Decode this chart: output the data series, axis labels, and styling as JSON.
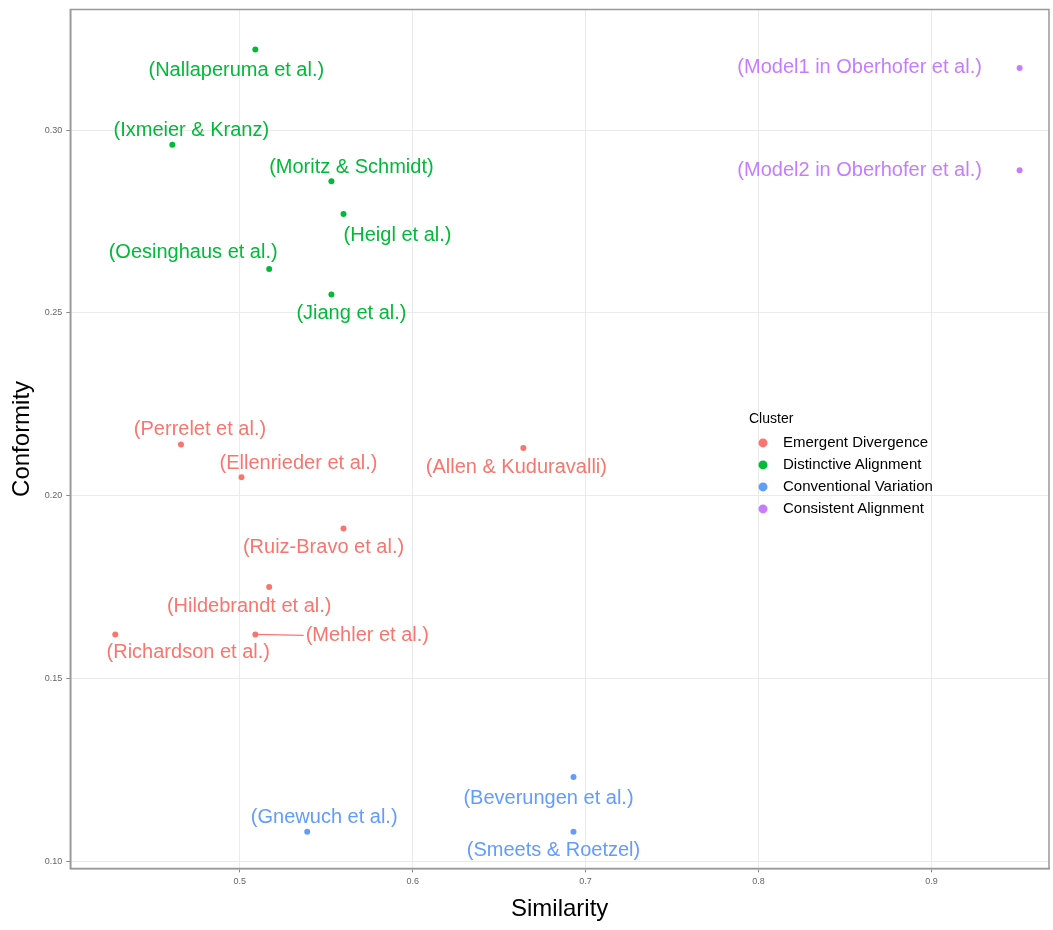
{
  "chart_data": {
    "type": "scatter",
    "xlabel": "Similarity",
    "ylabel": "Conformity",
    "legend_title": "Cluster",
    "legend": "right",
    "grid": true,
    "marker": "circle",
    "xlim": [
      0.402,
      0.968
    ],
    "ylim": [
      0.098,
      0.333
    ],
    "xticks": [
      {
        "value": 0.5,
        "label": "0.5"
      },
      {
        "value": 0.6,
        "label": "0.6"
      },
      {
        "value": 0.7,
        "label": "0.7"
      },
      {
        "value": 0.8,
        "label": "0.8"
      },
      {
        "value": 0.9,
        "label": "0.9"
      }
    ],
    "yticks": [
      {
        "value": 0.1,
        "label": "0.10"
      },
      {
        "value": 0.15,
        "label": "0.15"
      },
      {
        "value": 0.2,
        "label": "0.20"
      },
      {
        "value": 0.25,
        "label": "0.25"
      },
      {
        "value": 0.3,
        "label": "0.30"
      }
    ],
    "series": [
      {
        "name": "Emergent Divergence",
        "color": "#f8766d",
        "x": [
          0.466,
          0.501,
          0.664,
          0.56,
          0.517,
          0.428,
          0.509
        ],
        "values": [
          0.214,
          0.205,
          0.213,
          0.191,
          0.175,
          0.162,
          0.162
        ]
      },
      {
        "name": "Distinctive Alignment",
        "color": "#00ba38",
        "x": [
          0.509,
          0.461,
          0.553,
          0.56,
          0.517,
          0.553
        ],
        "values": [
          0.322,
          0.296,
          0.286,
          0.277,
          0.262,
          0.255
        ]
      },
      {
        "name": "Conventional Variation",
        "color": "#619cff",
        "x": [
          0.539,
          0.693,
          0.693
        ],
        "values": [
          0.108,
          0.123,
          0.108
        ]
      },
      {
        "name": "Consistent Alignment",
        "color": "#c77cff",
        "x": [
          0.951,
          0.951
        ],
        "values": [
          0.317,
          0.289
        ]
      }
    ],
    "annotations": [
      {
        "text": "(Perrelet et al.)",
        "x": 0.466,
        "y": 0.214
      },
      {
        "text": "(Ellenrieder et al.)",
        "x": 0.501,
        "y": 0.205
      },
      {
        "text": "(Allen & Kuduravalli)",
        "x": 0.664,
        "y": 0.213
      },
      {
        "text": "(Ruiz-Bravo et al.)",
        "x": 0.56,
        "y": 0.191
      },
      {
        "text": "(Hildebrandt et al.)",
        "x": 0.517,
        "y": 0.175
      },
      {
        "text": "(Richardson et al.)",
        "x": 0.428,
        "y": 0.162
      },
      {
        "text": "(Mehler et al.)",
        "x": 0.509,
        "y": 0.162
      },
      {
        "text": "(Nallaperuma et al.)",
        "x": 0.509,
        "y": 0.322
      },
      {
        "text": "(Ixmeier & Kranz)",
        "x": 0.461,
        "y": 0.296
      },
      {
        "text": "(Moritz & Schmidt)",
        "x": 0.553,
        "y": 0.286
      },
      {
        "text": "(Heigl et al.)",
        "x": 0.56,
        "y": 0.277
      },
      {
        "text": "(Oesinghaus et al.)",
        "x": 0.517,
        "y": 0.262
      },
      {
        "text": "(Jiang et al.)",
        "x": 0.553,
        "y": 0.255
      },
      {
        "text": "(Gnewuch et al.)",
        "x": 0.539,
        "y": 0.108
      },
      {
        "text": "(Beverungen et al.)",
        "x": 0.693,
        "y": 0.123
      },
      {
        "text": "(Smeets & Roetzel)",
        "x": 0.693,
        "y": 0.108
      },
      {
        "text": "(Model1 in Oberhofer et al.)",
        "x": 0.951,
        "y": 0.317
      },
      {
        "text": "(Model2 in Oberhofer et al.)",
        "x": 0.951,
        "y": 0.289
      }
    ]
  }
}
